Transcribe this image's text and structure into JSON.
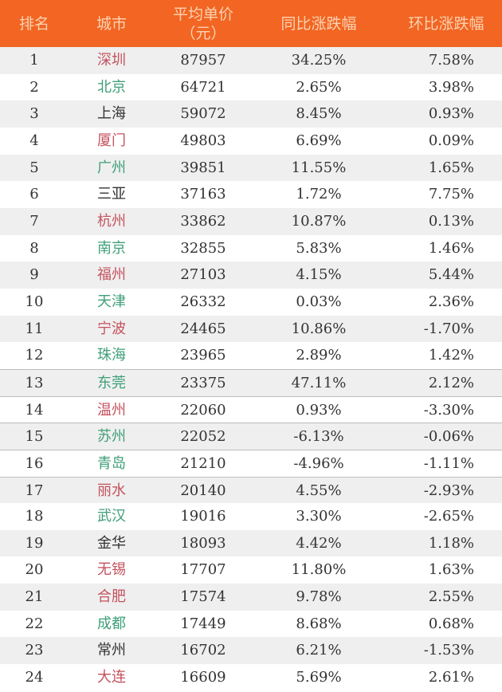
{
  "header": {
    "rank": "排名",
    "city": "城市",
    "price": "平均单价\n（元）",
    "price_line1": "平均单价",
    "price_line2": "（元）",
    "yoy": "同比涨跌幅",
    "mom": "环比涨跌幅"
  },
  "colors": {
    "header_bg": "#f26522",
    "header_text": "#fbd3b3",
    "red": "#c4525e",
    "green": "#3f9f78",
    "black": "#333333"
  },
  "rows": [
    {
      "rank": "1",
      "city": "深圳",
      "city_color": "red",
      "price": "87957",
      "yoy": "34.25%",
      "mom": "7.58%"
    },
    {
      "rank": "2",
      "city": "北京",
      "city_color": "green",
      "price": "64721",
      "yoy": "2.65%",
      "mom": "3.98%"
    },
    {
      "rank": "3",
      "city": "上海",
      "city_color": "black",
      "price": "59072",
      "yoy": "8.45%",
      "mom": "0.93%"
    },
    {
      "rank": "4",
      "city": "厦门",
      "city_color": "red",
      "price": "49803",
      "yoy": "6.69%",
      "mom": "0.09%"
    },
    {
      "rank": "5",
      "city": "广州",
      "city_color": "green",
      "price": "39851",
      "yoy": "11.55%",
      "mom": "1.65%"
    },
    {
      "rank": "6",
      "city": "三亚",
      "city_color": "black",
      "price": "37163",
      "yoy": "1.72%",
      "mom": "7.75%"
    },
    {
      "rank": "7",
      "city": "杭州",
      "city_color": "red",
      "price": "33862",
      "yoy": "10.87%",
      "mom": "0.13%"
    },
    {
      "rank": "8",
      "city": "南京",
      "city_color": "green",
      "price": "32855",
      "yoy": "5.83%",
      "mom": "1.46%"
    },
    {
      "rank": "9",
      "city": "福州",
      "city_color": "red",
      "price": "27103",
      "yoy": "4.15%",
      "mom": "5.44%"
    },
    {
      "rank": "10",
      "city": "天津",
      "city_color": "green",
      "price": "26332",
      "yoy": "0.03%",
      "mom": "2.36%"
    },
    {
      "rank": "11",
      "city": "宁波",
      "city_color": "red",
      "price": "24465",
      "yoy": "10.86%",
      "mom": "-1.70%"
    },
    {
      "rank": "12",
      "city": "珠海",
      "city_color": "green",
      "price": "23965",
      "yoy": "2.89%",
      "mom": "1.42%"
    },
    {
      "rank": "13",
      "city": "东莞",
      "city_color": "green",
      "price": "23375",
      "yoy": "47.11%",
      "mom": "2.12%"
    },
    {
      "rank": "14",
      "city": "温州",
      "city_color": "red",
      "price": "22060",
      "yoy": "0.93%",
      "mom": "-3.30%"
    },
    {
      "rank": "15",
      "city": "苏州",
      "city_color": "green",
      "price": "22052",
      "yoy": "-6.13%",
      "mom": "-0.06%"
    },
    {
      "rank": "16",
      "city": "青岛",
      "city_color": "green",
      "price": "21210",
      "yoy": "-4.96%",
      "mom": "-1.11%"
    },
    {
      "rank": "17",
      "city": "丽水",
      "city_color": "red",
      "price": "20140",
      "yoy": "4.55%",
      "mom": "-2.93%"
    },
    {
      "rank": "18",
      "city": "武汉",
      "city_color": "green",
      "price": "19016",
      "yoy": "3.30%",
      "mom": "-2.65%"
    },
    {
      "rank": "19",
      "city": "金华",
      "city_color": "black",
      "price": "18093",
      "yoy": "4.42%",
      "mom": "1.18%"
    },
    {
      "rank": "20",
      "city": "无锡",
      "city_color": "red",
      "price": "17707",
      "yoy": "11.80%",
      "mom": "1.63%"
    },
    {
      "rank": "21",
      "city": "合肥",
      "city_color": "red",
      "price": "17574",
      "yoy": "9.78%",
      "mom": "2.55%"
    },
    {
      "rank": "22",
      "city": "成都",
      "city_color": "green",
      "price": "17449",
      "yoy": "8.68%",
      "mom": "0.68%"
    },
    {
      "rank": "23",
      "city": "常州",
      "city_color": "black",
      "price": "16702",
      "yoy": "6.21%",
      "mom": "-1.53%"
    },
    {
      "rank": "24",
      "city": "大连",
      "city_color": "red",
      "price": "16609",
      "yoy": "5.69%",
      "mom": "2.61%"
    }
  ]
}
